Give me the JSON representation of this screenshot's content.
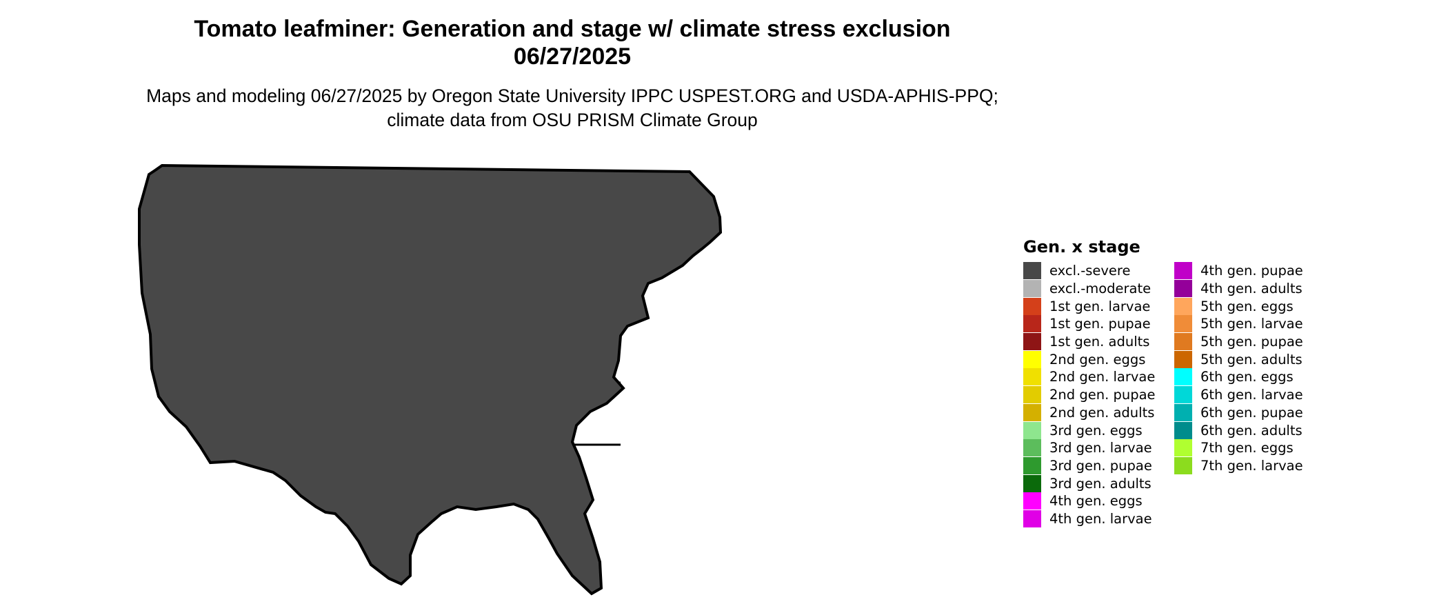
{
  "title": "Tomato leafminer: Generation and stage w/ climate stress exclusion 06/27/2025",
  "subtitle": "Maps and modeling 06/27/2025 by Oregon State University IPPC USPEST.ORG and USDA-APHIS-PPQ; climate data from OSU PRISM Climate Group",
  "legend": {
    "title": "Gen. x stage",
    "items": [
      {
        "label": "excl.-severe",
        "color": "#484848"
      },
      {
        "label": "excl.-moderate",
        "color": "#b3b3b3"
      },
      {
        "label": "1st gen. larvae",
        "color": "#d4401a"
      },
      {
        "label": "1st gen. pupae",
        "color": "#b8261a"
      },
      {
        "label": "1st gen. adults",
        "color": "#8e1515"
      },
      {
        "label": "2nd gen. eggs",
        "color": "#ffff00"
      },
      {
        "label": "2nd gen. larvae",
        "color": "#f0e000"
      },
      {
        "label": "2nd gen. pupae",
        "color": "#e2cc00"
      },
      {
        "label": "2nd gen. adults",
        "color": "#d4b000"
      },
      {
        "label": "3rd gen. eggs",
        "color": "#8ee68e"
      },
      {
        "label": "3rd gen. larvae",
        "color": "#5cbd5c"
      },
      {
        "label": "3rd gen. pupae",
        "color": "#2e9a2e"
      },
      {
        "label": "3rd gen. adults",
        "color": "#0b6a0b"
      },
      {
        "label": "4th gen. eggs",
        "color": "#ff00ff"
      },
      {
        "label": "4th gen. larvae",
        "color": "#e000e6"
      },
      {
        "label": "4th gen. pupae",
        "color": "#c000c8"
      },
      {
        "label": "4th gen. adults",
        "color": "#94009a"
      },
      {
        "label": "5th gen. eggs",
        "color": "#ffa65c"
      },
      {
        "label": "5th gen. larvae",
        "color": "#f08c38"
      },
      {
        "label": "5th gen. pupae",
        "color": "#e07a20"
      },
      {
        "label": "5th gen. adults",
        "color": "#cc6600"
      },
      {
        "label": "6th gen. eggs",
        "color": "#00ffff"
      },
      {
        "label": "6th gen. larvae",
        "color": "#00d8d8"
      },
      {
        "label": "6th gen. pupae",
        "color": "#00b0b0"
      },
      {
        "label": "6th gen. adults",
        "color": "#008c8c"
      },
      {
        "label": "7th gen. eggs",
        "color": "#b0ff30"
      },
      {
        "label": "7th gen. larvae",
        "color": "#8cdc1e"
      }
    ]
  }
}
